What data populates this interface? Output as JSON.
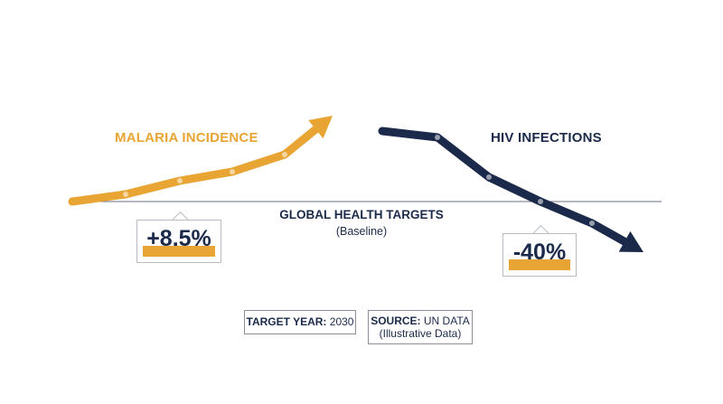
{
  "chart_data": {
    "type": "line",
    "title": "GLOBAL HEALTH TARGETS",
    "subtitle": "(Baseline)",
    "series": [
      {
        "name": "MALARIA INCIDENCE",
        "color": "#e8a534",
        "direction": "up",
        "change_label": "+8.5%",
        "points": [
          0,
          0.8,
          2.3,
          3.3,
          5.2,
          9.5
        ]
      },
      {
        "name": "HIV INFECTIONS",
        "color": "#1b2a4a",
        "direction": "down",
        "change_label": "-40%",
        "points": [
          7.8,
          7.1,
          2.7,
          0,
          -2.4,
          -5.6
        ]
      }
    ],
    "baseline_value": 0,
    "grid": false,
    "legend": "inline labels"
  },
  "footer": {
    "target_year_label": "TARGET YEAR:",
    "target_year_value": "2030",
    "source_label": "SOURCE:",
    "source_value": "UN DATA",
    "source_note": "(Illustrative Data)"
  },
  "colors": {
    "accent": "#e8a534",
    "navy": "#1b2a4a",
    "baseline": "#6b7280"
  }
}
